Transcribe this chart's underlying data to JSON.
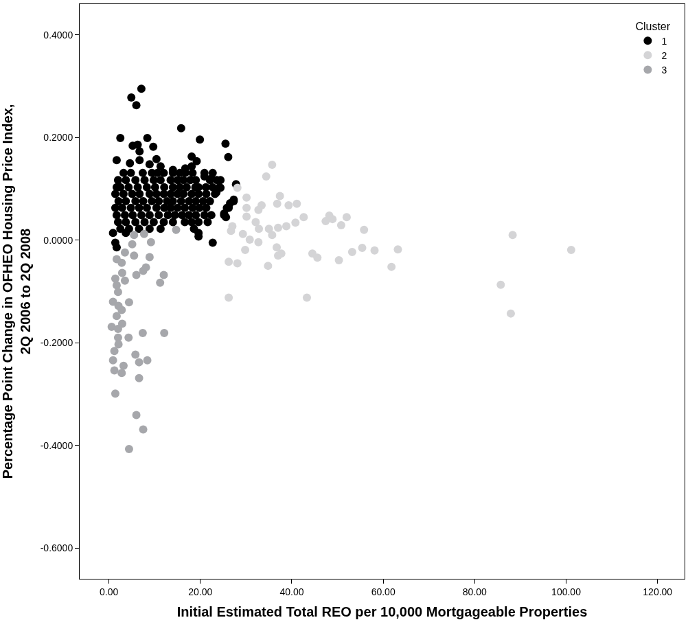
{
  "chart_data": {
    "type": "scatter",
    "xlabel": "Initial Estimated Total REO per 10,000 Mortgageable Properties",
    "ylabel": "Percentage Point Change in OFHEO Housing Price Index,\n2Q 2006 to 2Q 2008",
    "legend_title": "Cluster",
    "legend": "top right",
    "marker": "circle",
    "xlim": [
      -6.4,
      125.9
    ],
    "ylim": [
      -0.66,
      0.46
    ],
    "xticks": [
      {
        "value": 0,
        "label": "0.00"
      },
      {
        "value": 20,
        "label": "20.00"
      },
      {
        "value": 40,
        "label": "40.00"
      },
      {
        "value": 60,
        "label": "60.00"
      },
      {
        "value": 80,
        "label": "80.00"
      },
      {
        "value": 100,
        "label": "100.00"
      },
      {
        "value": 120,
        "label": "120.00"
      }
    ],
    "yticks": [
      {
        "value": -0.6,
        "label": "-0.6000"
      },
      {
        "value": -0.4,
        "label": "-0.4000"
      },
      {
        "value": -0.2,
        "label": "-0.2000"
      },
      {
        "value": 0,
        "label": "0.0000"
      },
      {
        "value": 0.2,
        "label": "0.2000"
      },
      {
        "value": 0.4,
        "label": "0.4000"
      }
    ],
    "series": [
      {
        "name": "1",
        "color": "#000000",
        "x": [
          7.1,
          4.9,
          6.0,
          15.8,
          2.5,
          8.4,
          19.9,
          25.5,
          26.1,
          5.2,
          6.3,
          9.7,
          6.7,
          1.7,
          18.1,
          19.2,
          4.6,
          6.7,
          10.4,
          8.9,
          11.3,
          14.0,
          16.7,
          18.1,
          3.2,
          4.8,
          7.4,
          9.4,
          10.6,
          12.0,
          14.0,
          15.5,
          16.7,
          18.3,
          20.9,
          22.7,
          2.0,
          3.7,
          5.8,
          7.8,
          9.8,
          11.3,
          13.5,
          15.0,
          16.3,
          17.8,
          19.0,
          22.1,
          23.6,
          24.4,
          1.7,
          2.5,
          4.3,
          6.3,
          8.3,
          10.1,
          12.1,
          14.0,
          15.5,
          17.0,
          18.9,
          19.6,
          21.2,
          22.7,
          24.2,
          1.4,
          3.2,
          5.1,
          6.7,
          8.9,
          10.4,
          12.0,
          13.5,
          15.0,
          16.3,
          18.1,
          19.6,
          21.3,
          23.2,
          2.1,
          3.7,
          5.8,
          7.5,
          9.4,
          10.9,
          12.7,
          14.0,
          15.8,
          17.5,
          19.0,
          20.6,
          22.1,
          27.3,
          1.4,
          2.9,
          4.8,
          6.6,
          8.3,
          10.4,
          12.1,
          13.5,
          15.0,
          16.6,
          18.3,
          19.8,
          21.3,
          26.2,
          1.7,
          3.5,
          5.2,
          7.1,
          8.9,
          10.9,
          12.9,
          14.4,
          16.0,
          17.5,
          19.0,
          20.9,
          22.4,
          25.2,
          2.0,
          3.7,
          5.8,
          7.8,
          9.8,
          12.0,
          14.0,
          16.6,
          18.1,
          19.6,
          21.6,
          2.5,
          4.4,
          6.6,
          8.9,
          11.3,
          18.6,
          0.9,
          3.7,
          19.6,
          1.4,
          22.7,
          1.7,
          27.8,
          27.3,
          26.5,
          25.8,
          25.2,
          25.6,
          19.6,
          20.9,
          22.4,
          24.4,
          23.5
        ],
        "values": [
          0.295,
          0.278,
          0.263,
          0.218,
          0.199,
          0.199,
          0.196,
          0.188,
          0.162,
          0.184,
          0.186,
          0.182,
          0.173,
          0.156,
          0.163,
          0.154,
          0.15,
          0.156,
          0.158,
          0.148,
          0.144,
          0.137,
          0.14,
          0.144,
          0.131,
          0.131,
          0.131,
          0.131,
          0.131,
          0.131,
          0.131,
          0.131,
          0.131,
          0.131,
          0.131,
          0.131,
          0.117,
          0.117,
          0.117,
          0.117,
          0.117,
          0.117,
          0.117,
          0.117,
          0.117,
          0.117,
          0.117,
          0.117,
          0.117,
          0.117,
          0.103,
          0.103,
          0.103,
          0.103,
          0.103,
          0.103,
          0.103,
          0.103,
          0.103,
          0.103,
          0.103,
          0.103,
          0.103,
          0.103,
          0.103,
          0.09,
          0.09,
          0.09,
          0.09,
          0.09,
          0.09,
          0.09,
          0.09,
          0.09,
          0.09,
          0.09,
          0.09,
          0.09,
          0.09,
          0.076,
          0.076,
          0.076,
          0.076,
          0.076,
          0.076,
          0.076,
          0.076,
          0.076,
          0.076,
          0.076,
          0.076,
          0.076,
          0.076,
          0.063,
          0.063,
          0.063,
          0.063,
          0.063,
          0.063,
          0.063,
          0.063,
          0.063,
          0.063,
          0.063,
          0.063,
          0.063,
          0.063,
          0.049,
          0.049,
          0.049,
          0.049,
          0.049,
          0.049,
          0.049,
          0.049,
          0.049,
          0.049,
          0.049,
          0.049,
          0.049,
          0.049,
          0.035,
          0.035,
          0.035,
          0.035,
          0.035,
          0.035,
          0.035,
          0.035,
          0.035,
          0.035,
          0.035,
          0.022,
          0.022,
          0.022,
          0.022,
          0.022,
          0.022,
          0.014,
          0.014,
          0.014,
          -0.005,
          -0.005,
          -0.014,
          0.109,
          0.079,
          0.072,
          0.063,
          0.052,
          0.045,
          0.007,
          0.124,
          0.12,
          0.102,
          0.093
        ]
      },
      {
        "name": "2",
        "color": "#d4d4d6",
        "x": [
          35.7,
          34.4,
          28.1,
          30.1,
          37.4,
          36.8,
          39.3,
          41.1,
          33.4,
          32.7,
          30.1,
          30.1,
          42.6,
          32.1,
          40.8,
          27.0,
          26.7,
          32.8,
          35.0,
          37.0,
          38.8,
          29.3,
          35.7,
          30.8,
          32.7,
          36.7,
          29.8,
          37.0,
          37.7,
          44.5,
          45.6,
          26.2,
          28.1,
          34.8,
          26.2,
          43.3,
          48.2,
          47.4,
          48.9,
          52.0,
          50.8,
          55.8,
          50.3,
          53.2,
          55.4,
          58.1,
          61.8,
          63.2,
          85.7,
          87.9,
          88.3,
          101.1
        ],
        "values": [
          0.147,
          0.124,
          0.102,
          0.083,
          0.086,
          0.071,
          0.068,
          0.071,
          0.068,
          0.059,
          0.063,
          0.046,
          0.045,
          0.035,
          0.034,
          0.027,
          0.018,
          0.022,
          0.022,
          0.024,
          0.027,
          0.012,
          0.01,
          0.001,
          -0.004,
          -0.014,
          -0.019,
          -0.03,
          -0.026,
          -0.026,
          -0.034,
          -0.042,
          -0.045,
          -0.05,
          -0.112,
          -0.112,
          0.048,
          0.037,
          0.041,
          0.045,
          0.029,
          0.02,
          -0.039,
          -0.023,
          -0.015,
          -0.02,
          -0.052,
          -0.018,
          -0.087,
          -0.143,
          0.01,
          -0.019
        ]
      },
      {
        "name": "3",
        "color": "#a6a7ab",
        "x": [
          5.5,
          7.7,
          9.2,
          5.1,
          3.5,
          5.5,
          1.7,
          8.9,
          2.8,
          8.1,
          7.5,
          2.9,
          6.0,
          12.0,
          11.2,
          1.4,
          3.5,
          1.7,
          2.0,
          0.9,
          4.4,
          2.1,
          2.8,
          1.7,
          2.9,
          0.6,
          2.0,
          7.4,
          12.1,
          4.3,
          2.0,
          2.1,
          1.2,
          5.8,
          0.9,
          6.6,
          8.4,
          3.2,
          1.2,
          2.8,
          6.6,
          1.4,
          6.0,
          7.5,
          4.4,
          14.7
        ],
        "values": [
          0.01,
          0.012,
          -0.004,
          -0.008,
          -0.024,
          -0.03,
          -0.037,
          -0.033,
          -0.044,
          -0.053,
          -0.06,
          -0.064,
          -0.068,
          -0.068,
          -0.083,
          -0.075,
          -0.079,
          -0.088,
          -0.101,
          -0.12,
          -0.121,
          -0.128,
          -0.136,
          -0.148,
          -0.163,
          -0.169,
          -0.173,
          -0.181,
          -0.181,
          -0.19,
          -0.19,
          -0.203,
          -0.216,
          -0.223,
          -0.234,
          -0.238,
          -0.234,
          -0.245,
          -0.254,
          -0.259,
          -0.269,
          -0.299,
          -0.341,
          -0.369,
          -0.407,
          0.02
        ]
      }
    ]
  }
}
